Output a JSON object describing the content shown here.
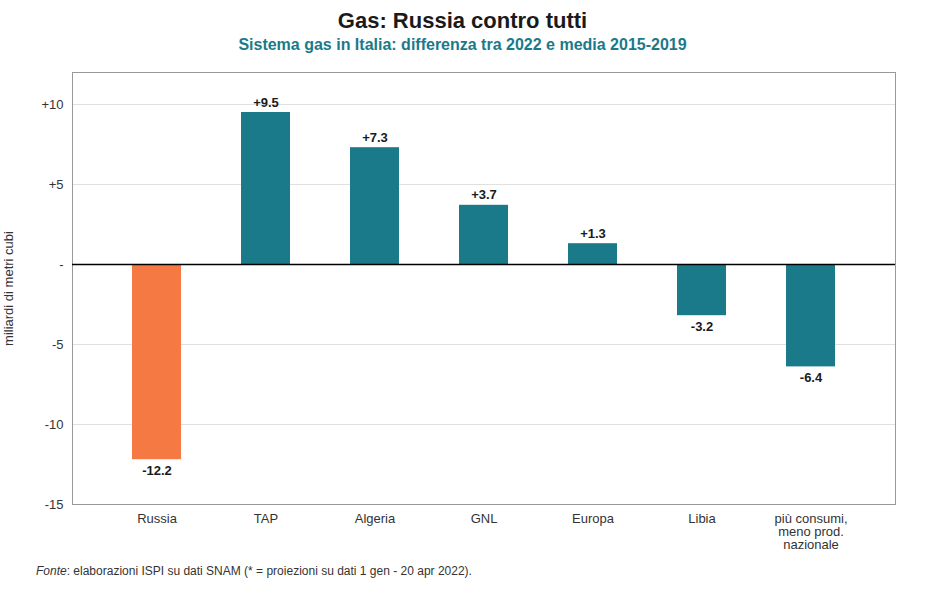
{
  "chart_data": {
    "type": "bar",
    "title": "Gas: Russia contro tutti",
    "subtitle": "Sistema gas in Italia: differenza tra 2022 e media 2015-2019",
    "caption": "Fonte: elaborazioni ISPI su dati SNAM (* = proiezioni su dati 1 gen - 20 apr 2022).",
    "categories": [
      "Russia",
      "TAP",
      "Algeria",
      "GNL",
      "Europa",
      "Libia",
      "più consumi,\nmeno prod.\nnazionale"
    ],
    "values": [
      -12.2,
      9.5,
      7.3,
      3.7,
      1.3,
      -3.2,
      -6.4
    ],
    "value_labels": [
      "-12.2",
      "+9.5",
      "+7.3",
      "+3.7",
      "+1.3",
      "-3.2",
      "-6.4"
    ],
    "colors": [
      "#F47942",
      "#1A7A8A",
      "#1A7A8A",
      "#1A7A8A",
      "#1A7A8A",
      "#1A7A8A",
      "#1A7A8A"
    ],
    "ylabel": "miliardi di metri cubi",
    "ylim": [
      -15,
      12
    ],
    "yticks": [
      -15,
      -10,
      -5,
      {
        "value": 0,
        "label": "-"
      },
      {
        "value": 5,
        "label": "+5"
      },
      {
        "value": 10,
        "label": "+10"
      }
    ],
    "grid": true,
    "data_labels": true
  }
}
